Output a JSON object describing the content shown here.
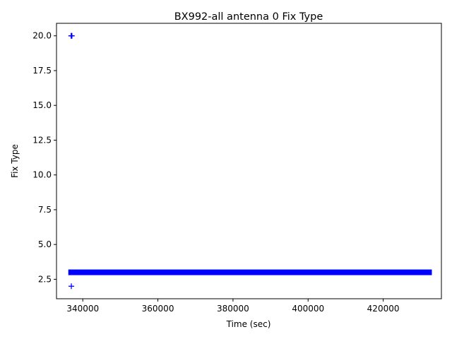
{
  "chart_data": {
    "type": "scatter",
    "title": "BX992-all antenna 0 Fix Type",
    "xlabel": "Time (sec)",
    "ylabel": "Fix Type",
    "xlim": [
      333000,
      435500
    ],
    "ylim": [
      1.1,
      20.9
    ],
    "x_ticks": [
      340000,
      360000,
      380000,
      400000,
      420000
    ],
    "x_tick_labels": [
      "340000",
      "360000",
      "380000",
      "400000",
      "420000"
    ],
    "y_ticks": [
      2.5,
      5.0,
      7.5,
      10.0,
      12.5,
      15.0,
      17.5,
      20.0
    ],
    "y_tick_labels": [
      "2.5",
      "5.0",
      "7.5",
      "10.0",
      "12.5",
      "15.0",
      "17.5",
      "20.0"
    ],
    "marker": "+",
    "color": "#0000ff",
    "grid": false,
    "legend": "none",
    "series": [
      {
        "segments": [
          {
            "y": 3,
            "x_range": [
              336900,
              432200
            ]
          }
        ],
        "points": [
          {
            "x": 336900,
            "y": 20
          },
          {
            "x": 337000,
            "y": 20
          },
          {
            "x": 337100,
            "y": 20
          },
          {
            "x": 336950,
            "y": 2
          }
        ]
      }
    ]
  }
}
